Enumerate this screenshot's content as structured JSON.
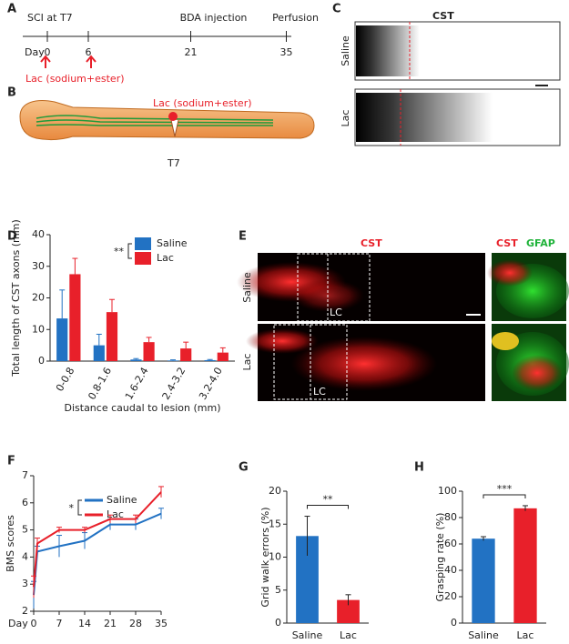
{
  "figure": {
    "a": {
      "label": "A",
      "title": "SCI at T7",
      "day_label": "Day",
      "days": [
        0,
        6,
        21,
        35
      ],
      "events": [
        "BDA injection",
        "Perfusion"
      ],
      "treatment": "Lac (sodium+ester)"
    },
    "b": {
      "label": "B",
      "treatment": "Lac (sodium+ester)",
      "site": "T7"
    },
    "c": {
      "label": "C",
      "title": "CST",
      "rows": [
        "Saline",
        "Lac"
      ]
    },
    "e": {
      "label": "E",
      "title": "CST",
      "stain_1": "CST",
      "stain_2": "GFAP",
      "rows": [
        "Saline",
        "Lac"
      ],
      "region": "LC"
    }
  },
  "chart_data": [
    {
      "type": "bar",
      "panel_label": "D",
      "ylabel": "Total length of CST axons (mm)",
      "xlabel": "Distance caudal to lesion (mm)",
      "categories": [
        "0-0.8",
        "0.8-1.6",
        "1.6-2.4",
        "2.4-3.2",
        "3.2-4.0"
      ],
      "series": [
        {
          "name": "Saline",
          "color": "#2272c3",
          "values": [
            13.5,
            5,
            0.5,
            0.2,
            0.3
          ],
          "errors": [
            9,
            3.5,
            0.3,
            0.2,
            0.2
          ]
        },
        {
          "name": "Lac",
          "color": "#e8202a",
          "values": [
            27.5,
            15.5,
            6,
            4,
            2.7
          ],
          "errors": [
            5,
            4,
            1.5,
            2,
            1.5
          ]
        }
      ],
      "annotation": "**",
      "ylim": [
        0,
        40
      ],
      "yticks": [
        0,
        10,
        20,
        30,
        40
      ]
    },
    {
      "type": "line",
      "panel_label": "F",
      "ylabel": "BMS scores",
      "xlabel": "Day",
      "x": [
        0,
        1,
        7,
        14,
        21,
        28,
        35
      ],
      "series": [
        {
          "name": "Saline",
          "color": "#2272c3",
          "values": [
            2.6,
            4.2,
            4.4,
            4.6,
            5.2,
            5.2,
            5.6
          ],
          "errors": [
            0.5,
            0.2,
            0.4,
            0.3,
            0.2,
            0.2,
            0.2
          ]
        },
        {
          "name": "Lac",
          "color": "#e8202a",
          "values": [
            2.9,
            4.5,
            5.0,
            5.0,
            5.4,
            5.4,
            6.4
          ],
          "errors": [
            0.4,
            0.2,
            0.1,
            0.1,
            0.15,
            0.15,
            0.2
          ]
        }
      ],
      "annotation": "*",
      "xlim": [
        0,
        35
      ],
      "xticks": [
        0,
        7,
        14,
        21,
        28,
        35
      ],
      "ylim": [
        2,
        7
      ],
      "yticks": [
        2,
        3,
        4,
        5,
        6,
        7
      ]
    },
    {
      "type": "bar",
      "panel_label": "G",
      "ylabel": "Grid walk errors (%)",
      "categories": [
        "Saline",
        "Lac"
      ],
      "values": [
        13.2,
        3.5
      ],
      "errors": [
        3,
        0.8
      ],
      "colors": [
        "#2272c3",
        "#e8202a"
      ],
      "annotation": "**",
      "ylim": [
        0,
        20
      ],
      "yticks": [
        0,
        5,
        10,
        15,
        20
      ]
    },
    {
      "type": "bar",
      "panel_label": "H",
      "ylabel": "Grasping rate (%)",
      "categories": [
        "Saline",
        "Lac"
      ],
      "values": [
        64,
        87
      ],
      "errors": [
        1.5,
        2
      ],
      "colors": [
        "#2272c3",
        "#e8202a"
      ],
      "annotation": "***",
      "ylim": [
        0,
        100
      ],
      "yticks": [
        0,
        20,
        40,
        60,
        80,
        100
      ]
    }
  ]
}
